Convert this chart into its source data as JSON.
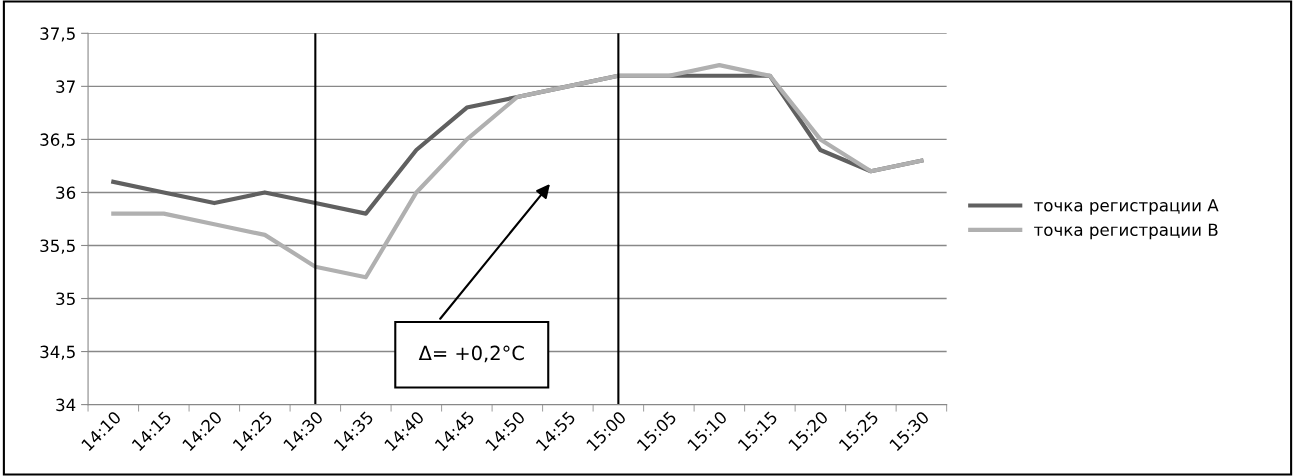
{
  "chart_data": {
    "type": "line",
    "categories": [
      "14:10",
      "14:15",
      "14:20",
      "14:25",
      "14:30",
      "14:35",
      "14:40",
      "14:45",
      "14:50",
      "14:55",
      "15:00",
      "15:05",
      "15:10",
      "15:15",
      "15:20",
      "15:25",
      "15:30"
    ],
    "series": [
      {
        "name": "точка регистрации А",
        "color": "#606060",
        "values": [
          36.1,
          36.0,
          35.9,
          36.0,
          35.9,
          35.8,
          36.4,
          36.8,
          36.9,
          37.0,
          37.1,
          37.1,
          37.1,
          37.1,
          36.4,
          36.2,
          36.3
        ]
      },
      {
        "name": "точка регистрации В",
        "color": "#b0b0b0",
        "values": [
          35.8,
          35.8,
          35.7,
          35.6,
          35.3,
          35.2,
          36.0,
          36.5,
          36.9,
          37.0,
          37.1,
          37.1,
          37.2,
          37.1,
          36.5,
          36.2,
          36.3
        ]
      }
    ],
    "ylim": [
      34,
      37.5
    ],
    "yticks": [
      34,
      {
        "value": 34.5,
        "label": "34,5"
      },
      35,
      {
        "value": 35.5,
        "label": "35,5"
      },
      36,
      {
        "value": 36.5,
        "label": "36,5"
      },
      37,
      {
        "value": 37.5,
        "label": "37,5"
      }
    ],
    "ref_lines": [
      {
        "axis": "x",
        "value": "14:30",
        "color": "#000000"
      },
      {
        "axis": "x",
        "value": "15:00",
        "color": "#000000"
      }
    ],
    "annotations": [
      "Δ= +0,2°C"
    ],
    "grid": "y",
    "legend": "right",
    "marker": "none",
    "line_style": "solid"
  }
}
